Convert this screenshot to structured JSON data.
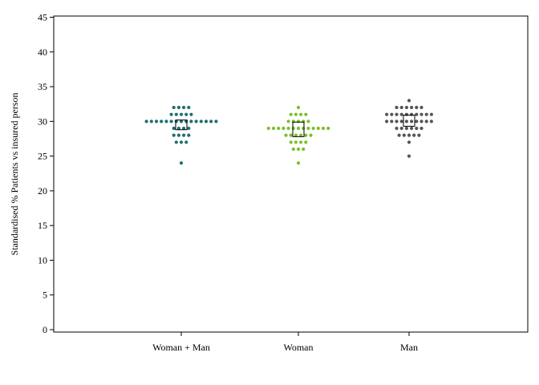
{
  "chart_data": {
    "type": "scatter",
    "subtype": "beeswarm-dot-plot",
    "title": "",
    "xlabel": "",
    "ylabel": "Standardised % Patients vs insured person",
    "ylim": [
      0,
      45
    ],
    "yticks": [
      0,
      5,
      10,
      15,
      20,
      25,
      30,
      35,
      40,
      45
    ],
    "grid": false,
    "legend": "none",
    "categories": [
      "Woman + Man",
      "Woman",
      "Man"
    ],
    "series": [
      {
        "color": "#1f6f73",
        "values": [
          24,
          27,
          27,
          27,
          28,
          28,
          28,
          28,
          29,
          29,
          29,
          29,
          30,
          30,
          30,
          30,
          30,
          30,
          30,
          30,
          30,
          30,
          30,
          30,
          30,
          30,
          30,
          31,
          31,
          31,
          31,
          31,
          32,
          32,
          32,
          32
        ],
        "box": {
          "q1": 28.8,
          "q3": 30.2
        }
      },
      {
        "color": "#7bbf2a",
        "values": [
          24,
          26,
          26,
          26,
          27,
          27,
          27,
          27,
          28,
          28,
          28,
          28,
          28,
          28,
          29,
          29,
          29,
          29,
          29,
          29,
          29,
          29,
          29,
          29,
          29,
          29,
          29,
          30,
          30,
          30,
          30,
          30,
          31,
          31,
          31,
          31,
          32
        ],
        "box": {
          "q1": 27.8,
          "q3": 29.9
        }
      },
      {
        "color": "#555555",
        "values": [
          25,
          27,
          28,
          28,
          28,
          28,
          28,
          29,
          29,
          29,
          29,
          29,
          29,
          30,
          30,
          30,
          30,
          30,
          30,
          30,
          30,
          30,
          30,
          31,
          31,
          31,
          31,
          31,
          31,
          31,
          31,
          31,
          31,
          32,
          32,
          32,
          32,
          32,
          32,
          33
        ],
        "box": {
          "q1": 29.3,
          "q3": 30.9
        }
      }
    ]
  }
}
